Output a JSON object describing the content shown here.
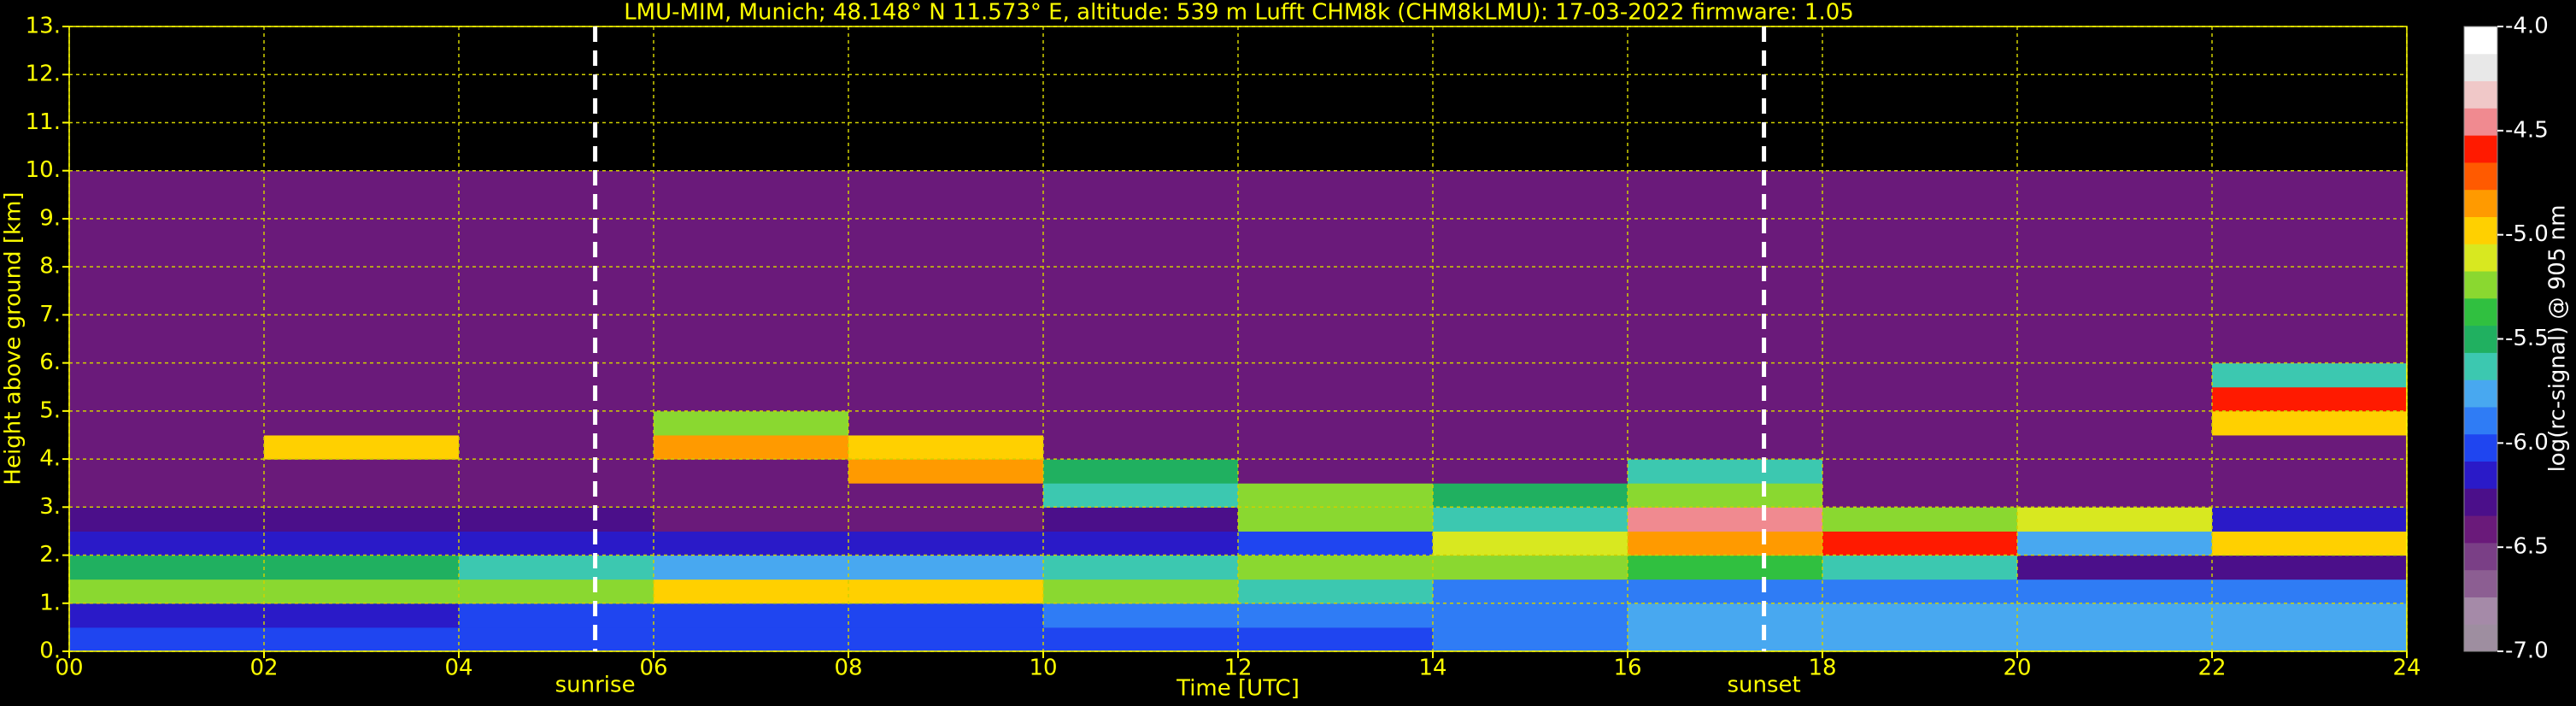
{
  "chart_data": {
    "type": "heatmap",
    "title": "LMU-MIM, Munich; 48.148° N 11.573° E, altitude: 539 m    Lufft CHM8k (CHM8kLMU): 17-03-2022    firmware: 1.05",
    "xlabel": "Time [UTC]",
    "ylabel": "Height above ground [km]",
    "colorbar_label": "log(rc-signal) @ 905 nm",
    "x_edges": [
      0,
      2,
      4,
      6,
      8,
      10,
      12,
      14,
      16,
      18,
      20,
      22,
      24
    ],
    "y_edges": [
      0,
      0.5,
      1,
      1.5,
      2,
      2.5,
      3,
      3.5,
      4,
      4.5,
      5,
      5.5,
      6,
      10
    ],
    "z": [
      [
        -6.0,
        -6.0,
        -6.0,
        -6.0,
        -6.0,
        -6.0,
        -6.0,
        -5.9,
        -5.7,
        -5.8,
        -5.8,
        -5.8
      ],
      [
        -6.1,
        -6.1,
        -6.0,
        -6.0,
        -6.0,
        -5.9,
        -5.9,
        -5.9,
        -5.8,
        -5.8,
        -5.8,
        -5.8
      ],
      [
        -5.3,
        -5.3,
        -5.2,
        -5.0,
        -5.0,
        -5.2,
        -5.6,
        -5.9,
        -5.9,
        -5.9,
        -5.9,
        -5.9
      ],
      [
        -5.5,
        -5.5,
        -5.6,
        -5.7,
        -5.7,
        -5.6,
        -5.3,
        -5.2,
        -5.4,
        -5.6,
        -6.3,
        -6.3
      ],
      [
        -6.1,
        -6.1,
        -6.1,
        -6.2,
        -6.2,
        -6.2,
        -6.0,
        -5.1,
        -4.8,
        -4.6,
        -5.8,
        -5.0
      ],
      [
        -6.3,
        -6.3,
        -6.3,
        -6.4,
        -6.4,
        -6.3,
        -5.3,
        -5.6,
        -4.5,
        -5.3,
        -5.1,
        -6.2
      ],
      [
        -6.4,
        -6.4,
        -6.4,
        -6.4,
        -6.4,
        -5.6,
        -5.3,
        -5.5,
        -5.2,
        -6.4,
        -6.4,
        -6.4
      ],
      [
        -6.4,
        -6.4,
        -6.4,
        -6.4,
        -4.9,
        -5.5,
        -6.4,
        -6.4,
        -5.6,
        -6.4,
        -6.4,
        -6.4
      ],
      [
        -6.4,
        -5.0,
        -6.4,
        -4.8,
        -5.0,
        -6.4,
        -6.4,
        -6.4,
        -6.4,
        -6.4,
        -6.4,
        -6.4
      ],
      [
        -6.4,
        -6.4,
        -6.4,
        -5.2,
        -6.4,
        -6.4,
        -6.4,
        -6.4,
        -6.4,
        -6.4,
        -6.4,
        -5.0
      ],
      [
        -6.4,
        -6.4,
        -6.4,
        -6.4,
        -6.4,
        -6.4,
        -6.4,
        -6.4,
        -6.4,
        -6.4,
        -6.4,
        -4.6
      ],
      [
        -6.4,
        -6.4,
        -6.4,
        -6.4,
        -6.4,
        -6.4,
        -6.4,
        -6.4,
        -6.4,
        -6.4,
        -6.4,
        -5.6
      ],
      [
        -6.4,
        -6.4,
        -6.4,
        -6.4,
        -6.4,
        -6.4,
        -6.4,
        -6.4,
        -6.4,
        -6.4,
        -6.4,
        -6.4
      ]
    ],
    "xlim": [
      0,
      24
    ],
    "ylim": [
      0,
      13
    ],
    "xticks": [
      {
        "value": 0,
        "label": "00"
      },
      {
        "value": 2,
        "label": "02"
      },
      {
        "value": 4,
        "label": "04"
      },
      {
        "value": 6,
        "label": "06"
      },
      {
        "value": 8,
        "label": "08"
      },
      {
        "value": 10,
        "label": "10"
      },
      {
        "value": 12,
        "label": "12"
      },
      {
        "value": 14,
        "label": "14"
      },
      {
        "value": 16,
        "label": "16"
      },
      {
        "value": 18,
        "label": "18"
      },
      {
        "value": 20,
        "label": "20"
      },
      {
        "value": 22,
        "label": "22"
      },
      {
        "value": 24,
        "label": "24"
      }
    ],
    "yticks": [
      {
        "value": 0,
        "label": "0."
      },
      {
        "value": 1,
        "label": "1."
      },
      {
        "value": 2,
        "label": "2."
      },
      {
        "value": 3,
        "label": "3."
      },
      {
        "value": 4,
        "label": "4."
      },
      {
        "value": 5,
        "label": "5."
      },
      {
        "value": 6,
        "label": "6."
      },
      {
        "value": 7,
        "label": "7."
      },
      {
        "value": 8,
        "label": "8."
      },
      {
        "value": 9,
        "label": "9."
      },
      {
        "value": 10,
        "label": "10."
      },
      {
        "value": 11,
        "label": "11."
      },
      {
        "value": 12,
        "label": "12."
      },
      {
        "value": 13,
        "label": "13."
      }
    ],
    "clim": [
      -7,
      -4
    ],
    "cticks": [
      {
        "value": -4,
        "label": "-4.0"
      },
      {
        "value": -4.5,
        "label": "-4.5"
      },
      {
        "value": -5,
        "label": "-5.0"
      },
      {
        "value": -5.5,
        "label": "-5.5"
      },
      {
        "value": -6,
        "label": "-6.0"
      },
      {
        "value": -6.5,
        "label": "-6.5"
      },
      {
        "value": -7,
        "label": "-7.0"
      }
    ],
    "colors": [
      "#9e8ea0",
      "#a58aa8",
      "#8c5e92",
      "#7a3f86",
      "#6a1a7a",
      "#4b0f8a",
      "#2a1ac8",
      "#1f45f0",
      "#2f7cf5",
      "#48a8f0",
      "#3cc8b0",
      "#20b060",
      "#30c040",
      "#8ad830",
      "#d8e820",
      "#ffd000",
      "#ff9a00",
      "#ff5a00",
      "#ff1a00",
      "#f08a90",
      "#f0c8c8",
      "#e8e8e8",
      "#ffffff"
    ],
    "grid": true,
    "annotations": [
      {
        "text": "sunrise",
        "x": 5.4
      },
      {
        "text": "sunset",
        "x": 17.4
      }
    ]
  }
}
